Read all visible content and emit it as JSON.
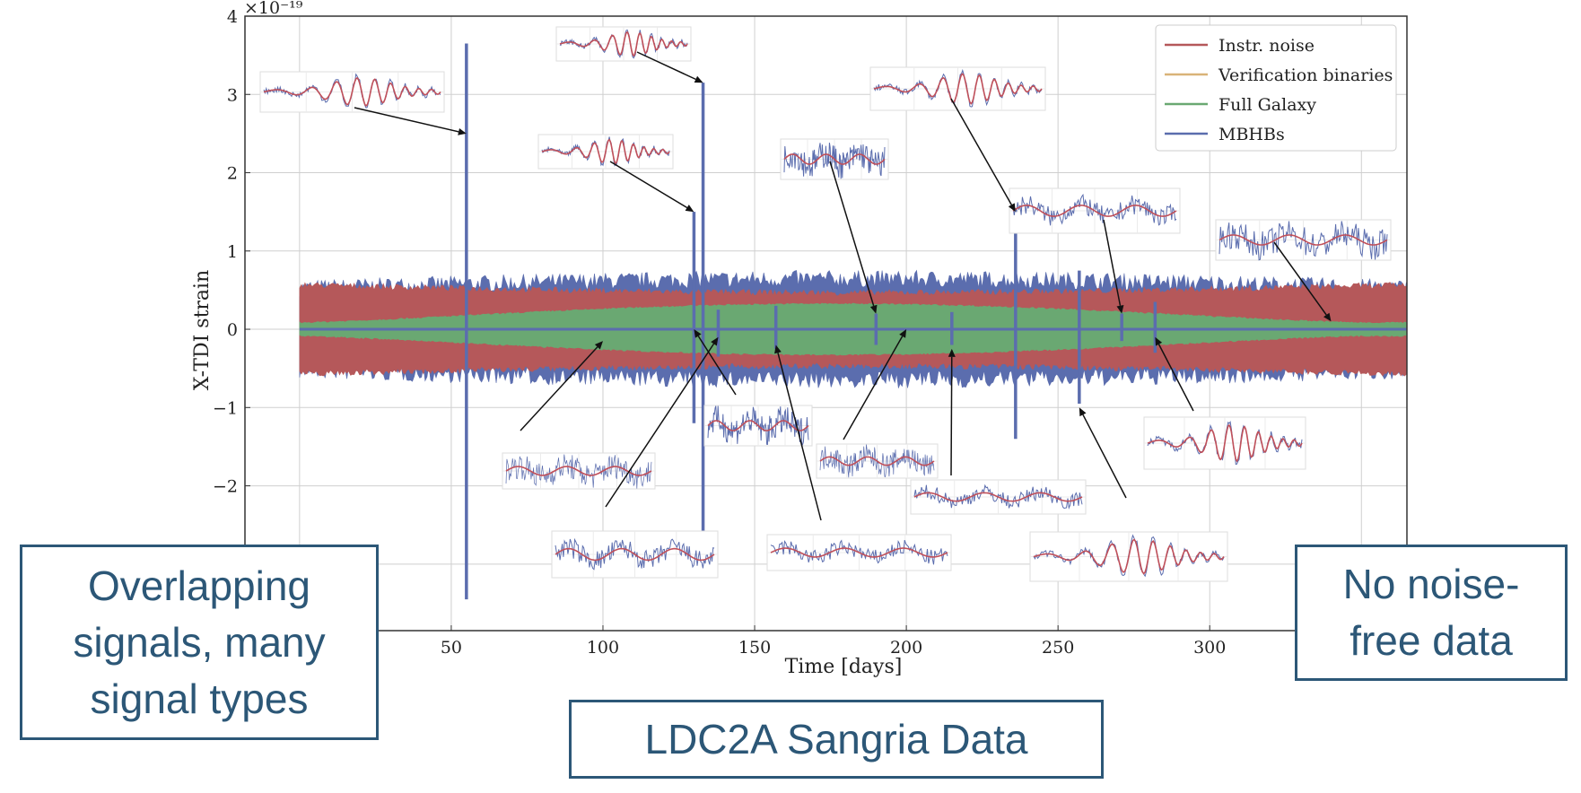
{
  "chart_data": {
    "type": "line",
    "title": "LDC2A Sangria Data",
    "xlabel": "Time [days]",
    "ylabel": "X-TDI strain",
    "y_scale_label": "×10⁻¹⁹",
    "xlim": [
      -18,
      365
    ],
    "ylim": [
      -3.85,
      4.0
    ],
    "x_ticks": [
      50,
      100,
      150,
      200,
      250,
      300
    ],
    "y_ticks": [
      -2,
      -1,
      0,
      1,
      2,
      3,
      4
    ],
    "grid": true,
    "legend_position": "top-right",
    "series": [
      {
        "name": "Instr. noise",
        "color": "#b5585a",
        "envelope": {
          "x": [
            0,
            365
          ],
          "half_width_start": 0.55,
          "half_width_mid": 0.45
        }
      },
      {
        "name": "Verification binaries",
        "color": "#d9b378"
      },
      {
        "name": "Full Galaxy",
        "color": "#6aa872",
        "envelope": {
          "x": [
            0,
            365
          ],
          "half_width_ends": 0.08,
          "half_width_peak": 0.32,
          "peak_x": 175
        }
      },
      {
        "name": "MBHBs",
        "color": "#5b6dae",
        "envelope_max": 0.72
      }
    ],
    "mbhb_events": [
      {
        "x": 55,
        "top": 3.65,
        "bottom": -3.45
      },
      {
        "x": 130,
        "top": 1.5,
        "bottom": -1.2
      },
      {
        "x": 133,
        "top": 3.15,
        "bottom": -2.6
      },
      {
        "x": 138,
        "top": 0.25,
        "bottom": -0.35
      },
      {
        "x": 157,
        "top": 0.3,
        "bottom": -0.25
      },
      {
        "x": 190,
        "top": 0.2,
        "bottom": -0.2
      },
      {
        "x": 215,
        "top": 0.22,
        "bottom": -0.2
      },
      {
        "x": 236,
        "top": 1.5,
        "bottom": -1.4
      },
      {
        "x": 257,
        "top": 0.75,
        "bottom": -0.95
      },
      {
        "x": 271,
        "top": 0.2,
        "bottom": -0.15
      },
      {
        "x": 282,
        "top": 0.35,
        "bottom": -0.3
      }
    ],
    "insets": [
      {
        "label": "inset-merger-55",
        "kind": "chirp",
        "target": [
          55,
          2.5
        ]
      },
      {
        "label": "inset-merger-133",
        "kind": "chirp",
        "target": [
          133,
          3.15
        ]
      },
      {
        "label": "inset-merger-130",
        "kind": "chirp",
        "target": [
          130,
          1.5
        ]
      },
      {
        "label": "inset-noise-190",
        "kind": "noise",
        "target": [
          190,
          0.2
        ]
      },
      {
        "label": "inset-merger-236",
        "kind": "chirp",
        "target": [
          236,
          1.5
        ]
      },
      {
        "label": "inset-noisy-271",
        "kind": "noisy",
        "target": [
          271,
          0.2
        ]
      },
      {
        "label": "inset-noise-340",
        "kind": "noise",
        "target": [
          340,
          0.1
        ]
      },
      {
        "label": "inset-galaxy-100",
        "kind": "dense",
        "target": [
          100,
          -0.15
        ]
      },
      {
        "label": "inset-noise-130b",
        "kind": "noise",
        "target": [
          130,
          0.0
        ]
      },
      {
        "label": "inset-galaxy-200",
        "kind": "dense",
        "target": [
          200,
          0.0
        ]
      },
      {
        "label": "inset-noisy-138",
        "kind": "noisy",
        "target": [
          138,
          -0.1
        ]
      },
      {
        "label": "inset-noisy-157",
        "kind": "noisy",
        "target": [
          157,
          -0.2
        ]
      },
      {
        "label": "inset-noisy-215",
        "kind": "noisy",
        "target": [
          215,
          -0.25
        ]
      },
      {
        "label": "inset-merger-282",
        "kind": "chirp",
        "target": [
          282,
          -0.1
        ]
      },
      {
        "label": "inset-merger-257",
        "kind": "chirp",
        "target": [
          257,
          -1.0
        ]
      }
    ]
  },
  "callouts": {
    "left": "Overlapping\nsignals, many\nsignal types",
    "right": "No noise-\nfree data",
    "title": "LDC2A Sangria Data"
  },
  "colors": {
    "accent": "#2c5777",
    "axis": "#333333",
    "grid": "#cfcfcf",
    "arrow": "#111111"
  }
}
